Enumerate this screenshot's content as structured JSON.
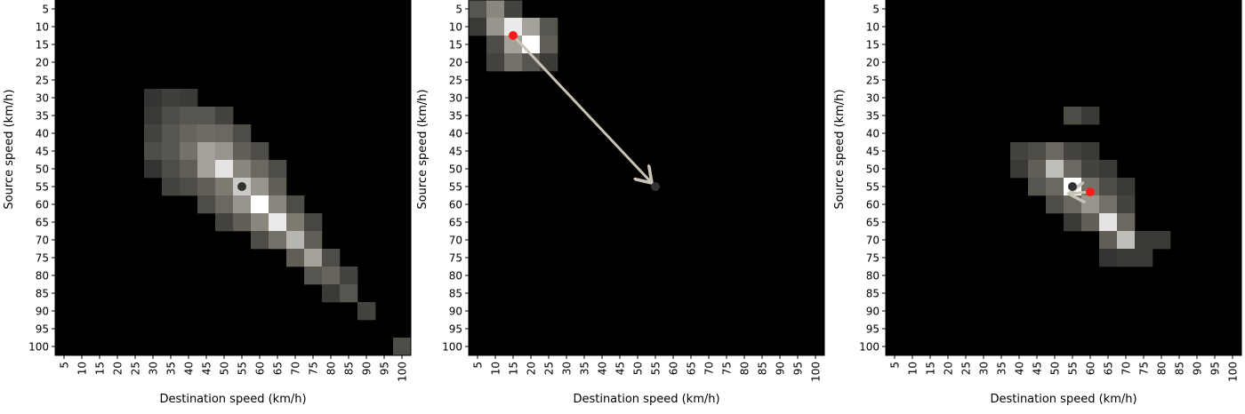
{
  "colors": {
    "background": "#000000",
    "cell_low": "#1e1e1e",
    "cell_mid": "#7d7a70",
    "cell_high": "#ffffff",
    "arrow": "#c8c3b5",
    "source_marker": "#333333",
    "destination_marker": "#ff1a1a"
  },
  "chart_data": [
    {
      "type": "heatmap",
      "xlabel": "Destination speed (km/h)",
      "ylabel": "Source speed (km/h)",
      "x_ticks": [
        "5",
        "10",
        "15",
        "20",
        "25",
        "30",
        "35",
        "40",
        "45",
        "50",
        "55",
        "60",
        "65",
        "70",
        "75",
        "80",
        "85",
        "90",
        "95",
        "100"
      ],
      "y_ticks": [
        "5",
        "10",
        "15",
        "20",
        "25",
        "30",
        "35",
        "40",
        "45",
        "50",
        "55",
        "60",
        "65",
        "70",
        "75",
        "80",
        "85",
        "90",
        "95",
        "100"
      ],
      "cells": [
        {
          "x": 30,
          "y": 30,
          "v": 0.12
        },
        {
          "x": 35,
          "y": 30,
          "v": 0.18
        },
        {
          "x": 40,
          "y": 30,
          "v": 0.15
        },
        {
          "x": 30,
          "y": 35,
          "v": 0.15
        },
        {
          "x": 35,
          "y": 35,
          "v": 0.25
        },
        {
          "x": 40,
          "y": 35,
          "v": 0.3
        },
        {
          "x": 45,
          "y": 35,
          "v": 0.3
        },
        {
          "x": 50,
          "y": 35,
          "v": 0.2
        },
        {
          "x": 30,
          "y": 40,
          "v": 0.2
        },
        {
          "x": 35,
          "y": 40,
          "v": 0.3
        },
        {
          "x": 40,
          "y": 40,
          "v": 0.38
        },
        {
          "x": 45,
          "y": 40,
          "v": 0.42
        },
        {
          "x": 50,
          "y": 40,
          "v": 0.4
        },
        {
          "x": 55,
          "y": 40,
          "v": 0.25
        },
        {
          "x": 30,
          "y": 45,
          "v": 0.25
        },
        {
          "x": 35,
          "y": 45,
          "v": 0.3
        },
        {
          "x": 40,
          "y": 45,
          "v": 0.45
        },
        {
          "x": 45,
          "y": 45,
          "v": 0.65
        },
        {
          "x": 50,
          "y": 45,
          "v": 0.6
        },
        {
          "x": 55,
          "y": 45,
          "v": 0.35
        },
        {
          "x": 60,
          "y": 45,
          "v": 0.25
        },
        {
          "x": 30,
          "y": 50,
          "v": 0.12
        },
        {
          "x": 35,
          "y": 50,
          "v": 0.25
        },
        {
          "x": 40,
          "y": 50,
          "v": 0.35
        },
        {
          "x": 45,
          "y": 50,
          "v": 0.65
        },
        {
          "x": 50,
          "y": 50,
          "v": 0.9
        },
        {
          "x": 55,
          "y": 50,
          "v": 0.55
        },
        {
          "x": 60,
          "y": 50,
          "v": 0.4
        },
        {
          "x": 65,
          "y": 50,
          "v": 0.25
        },
        {
          "x": 35,
          "y": 55,
          "v": 0.2
        },
        {
          "x": 40,
          "y": 55,
          "v": 0.25
        },
        {
          "x": 45,
          "y": 55,
          "v": 0.35
        },
        {
          "x": 50,
          "y": 55,
          "v": 0.5
        },
        {
          "x": 55,
          "y": 55,
          "v": 0.8
        },
        {
          "x": 60,
          "y": 55,
          "v": 0.6
        },
        {
          "x": 65,
          "y": 55,
          "v": 0.35
        },
        {
          "x": 45,
          "y": 60,
          "v": 0.25
        },
        {
          "x": 50,
          "y": 60,
          "v": 0.4
        },
        {
          "x": 55,
          "y": 60,
          "v": 0.6
        },
        {
          "x": 60,
          "y": 60,
          "v": 1.0
        },
        {
          "x": 65,
          "y": 60,
          "v": 0.55
        },
        {
          "x": 70,
          "y": 60,
          "v": 0.25
        },
        {
          "x": 50,
          "y": 65,
          "v": 0.2
        },
        {
          "x": 55,
          "y": 65,
          "v": 0.35
        },
        {
          "x": 60,
          "y": 65,
          "v": 0.55
        },
        {
          "x": 65,
          "y": 65,
          "v": 0.92
        },
        {
          "x": 70,
          "y": 65,
          "v": 0.5
        },
        {
          "x": 75,
          "y": 65,
          "v": 0.22
        },
        {
          "x": 60,
          "y": 70,
          "v": 0.25
        },
        {
          "x": 65,
          "y": 70,
          "v": 0.45
        },
        {
          "x": 70,
          "y": 70,
          "v": 0.72
        },
        {
          "x": 75,
          "y": 70,
          "v": 0.35
        },
        {
          "x": 70,
          "y": 75,
          "v": 0.35
        },
        {
          "x": 75,
          "y": 75,
          "v": 0.65
        },
        {
          "x": 80,
          "y": 75,
          "v": 0.25
        },
        {
          "x": 75,
          "y": 80,
          "v": 0.3
        },
        {
          "x": 80,
          "y": 80,
          "v": 0.38
        },
        {
          "x": 85,
          "y": 80,
          "v": 0.2
        },
        {
          "x": 80,
          "y": 85,
          "v": 0.15
        },
        {
          "x": 85,
          "y": 85,
          "v": 0.3
        },
        {
          "x": 90,
          "y": 90,
          "v": 0.2
        },
        {
          "x": 100,
          "y": 100,
          "v": 0.25
        }
      ],
      "source_point": {
        "x": 55,
        "y": 55
      },
      "destination_point": null
    },
    {
      "type": "heatmap",
      "xlabel": "Destination speed (km/h)",
      "ylabel": "Source speed (km/h)",
      "x_ticks": [
        "5",
        "10",
        "15",
        "20",
        "25",
        "30",
        "35",
        "40",
        "45",
        "50",
        "55",
        "60",
        "65",
        "70",
        "75",
        "80",
        "85",
        "90",
        "95",
        "100"
      ],
      "y_ticks": [
        "5",
        "10",
        "15",
        "20",
        "25",
        "30",
        "35",
        "40",
        "45",
        "50",
        "55",
        "60",
        "65",
        "70",
        "75",
        "80",
        "85",
        "90",
        "95",
        "100"
      ],
      "cells": [
        {
          "x": 5,
          "y": 5,
          "v": 0.3
        },
        {
          "x": 10,
          "y": 5,
          "v": 0.55
        },
        {
          "x": 15,
          "y": 5,
          "v": 0.2
        },
        {
          "x": 5,
          "y": 10,
          "v": 0.15
        },
        {
          "x": 10,
          "y": 10,
          "v": 0.6
        },
        {
          "x": 15,
          "y": 10,
          "v": 0.92
        },
        {
          "x": 20,
          "y": 10,
          "v": 0.65
        },
        {
          "x": 25,
          "y": 10,
          "v": 0.3
        },
        {
          "x": 10,
          "y": 15,
          "v": 0.25
        },
        {
          "x": 15,
          "y": 15,
          "v": 0.65
        },
        {
          "x": 20,
          "y": 15,
          "v": 1.0
        },
        {
          "x": 25,
          "y": 15,
          "v": 0.35
        },
        {
          "x": 10,
          "y": 20,
          "v": 0.2
        },
        {
          "x": 15,
          "y": 20,
          "v": 0.45
        },
        {
          "x": 20,
          "y": 20,
          "v": 0.3
        },
        {
          "x": 25,
          "y": 20,
          "v": 0.15
        }
      ],
      "source_point": {
        "x": 55,
        "y": 55
      },
      "destination_point": {
        "x": 15,
        "y": 12.5
      },
      "arrow": {
        "from": {
          "x": 15,
          "y": 12.5
        },
        "to": {
          "x": 55,
          "y": 55
        }
      }
    },
    {
      "type": "heatmap",
      "xlabel": "Destination speed (km/h)",
      "ylabel": "Source speed (km/h)",
      "x_ticks": [
        "5",
        "10",
        "15",
        "20",
        "25",
        "30",
        "35",
        "40",
        "45",
        "50",
        "55",
        "60",
        "65",
        "70",
        "75",
        "80",
        "85",
        "90",
        "95",
        "100"
      ],
      "y_ticks": [
        "5",
        "10",
        "15",
        "20",
        "25",
        "30",
        "35",
        "40",
        "45",
        "50",
        "55",
        "60",
        "65",
        "70",
        "75",
        "80",
        "85",
        "90",
        "95",
        "100"
      ],
      "cells": [
        {
          "x": 55,
          "y": 35,
          "v": 0.25
        },
        {
          "x": 60,
          "y": 35,
          "v": 0.15
        },
        {
          "x": 40,
          "y": 45,
          "v": 0.2
        },
        {
          "x": 45,
          "y": 45,
          "v": 0.25
        },
        {
          "x": 50,
          "y": 45,
          "v": 0.4
        },
        {
          "x": 55,
          "y": 45,
          "v": 0.2
        },
        {
          "x": 60,
          "y": 45,
          "v": 0.15
        },
        {
          "x": 40,
          "y": 50,
          "v": 0.15
        },
        {
          "x": 45,
          "y": 50,
          "v": 0.35
        },
        {
          "x": 50,
          "y": 50,
          "v": 0.75
        },
        {
          "x": 55,
          "y": 50,
          "v": 0.4
        },
        {
          "x": 60,
          "y": 50,
          "v": 0.2
        },
        {
          "x": 65,
          "y": 50,
          "v": 0.15
        },
        {
          "x": 45,
          "y": 55,
          "v": 0.3
        },
        {
          "x": 50,
          "y": 55,
          "v": 0.4
        },
        {
          "x": 55,
          "y": 55,
          "v": 1.0
        },
        {
          "x": 60,
          "y": 55,
          "v": 0.45
        },
        {
          "x": 65,
          "y": 55,
          "v": 0.25
        },
        {
          "x": 70,
          "y": 55,
          "v": 0.15
        },
        {
          "x": 50,
          "y": 60,
          "v": 0.25
        },
        {
          "x": 55,
          "y": 60,
          "v": 0.4
        },
        {
          "x": 60,
          "y": 60,
          "v": 0.6
        },
        {
          "x": 65,
          "y": 60,
          "v": 0.45
        },
        {
          "x": 70,
          "y": 60,
          "v": 0.2
        },
        {
          "x": 55,
          "y": 65,
          "v": 0.15
        },
        {
          "x": 60,
          "y": 65,
          "v": 0.35
        },
        {
          "x": 65,
          "y": 65,
          "v": 0.9
        },
        {
          "x": 70,
          "y": 65,
          "v": 0.4
        },
        {
          "x": 65,
          "y": 70,
          "v": 0.35
        },
        {
          "x": 70,
          "y": 70,
          "v": 0.75
        },
        {
          "x": 75,
          "y": 70,
          "v": 0.15
        },
        {
          "x": 80,
          "y": 70,
          "v": 0.15
        },
        {
          "x": 65,
          "y": 75,
          "v": 0.12
        },
        {
          "x": 70,
          "y": 75,
          "v": 0.15
        },
        {
          "x": 75,
          "y": 75,
          "v": 0.15
        }
      ],
      "source_point": {
        "x": 55,
        "y": 55
      },
      "destination_point": {
        "x": 60,
        "y": 56.5
      },
      "arrow": {
        "from": {
          "x": 60,
          "y": 56.5
        },
        "to": {
          "x": 55,
          "y": 58
        }
      }
    }
  ]
}
